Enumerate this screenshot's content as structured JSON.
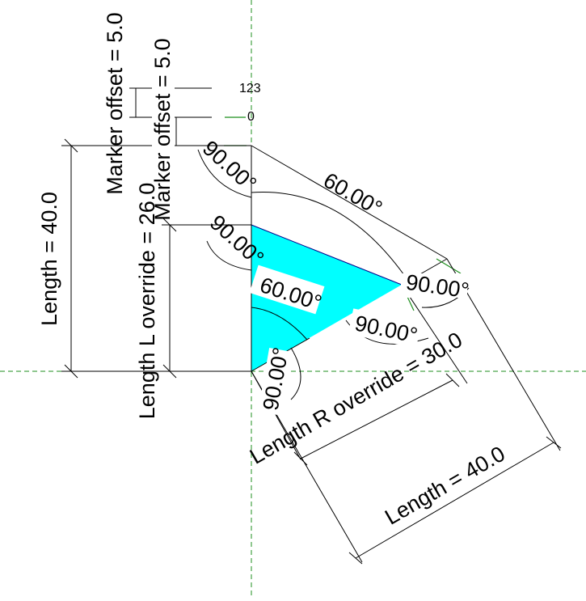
{
  "diagram": {
    "labels": {
      "marker_offset_1": "Marker offset = 5.0",
      "marker_offset_2": "Marker offset = 5.0",
      "length_left": "Length = 40.0",
      "length_l_override": "Length L override = 26.0",
      "length_r_override": "Length R override = 30.0",
      "length_right": "Length = 40.0",
      "angle_top": "60.00°",
      "angle_inner": "60.00°",
      "angle_a": "90.00°",
      "angle_b": "90.00°",
      "angle_c": "90.00°",
      "angle_d": "90.00°",
      "angle_e": "90.00°",
      "marker_value_top": "123",
      "marker_value_bottom": "0"
    },
    "colors": {
      "triangle_fill": "#00ffff",
      "triangle_edge": "#00008b",
      "centerline": "#1f8f1f",
      "dimension": "#000000"
    }
  }
}
